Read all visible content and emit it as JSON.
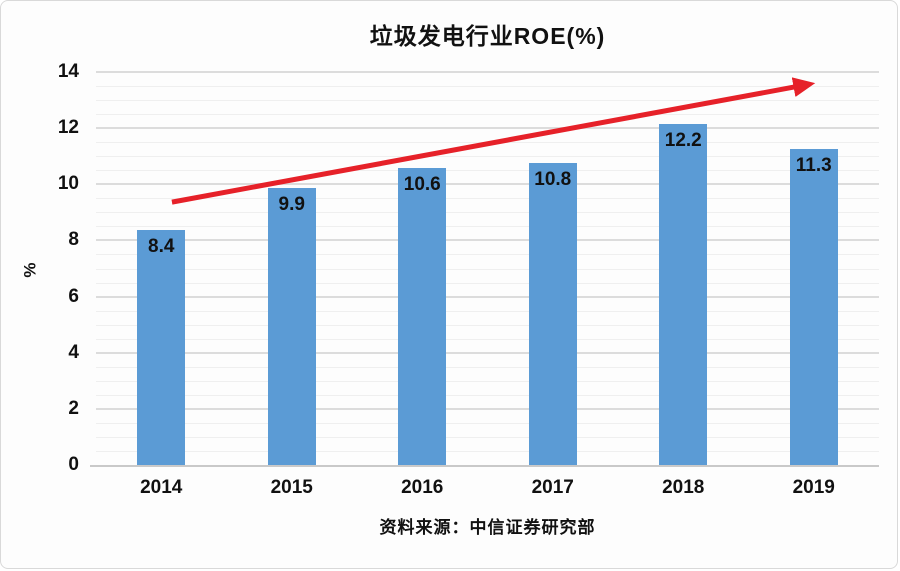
{
  "card": {
    "background": "#FDFDFD",
    "border_color": "#D9D9D9"
  },
  "chart_data": {
    "type": "bar",
    "title": "垃圾发电行业ROE(%)",
    "categories": [
      "2014",
      "2015",
      "2016",
      "2017",
      "2018",
      "2019"
    ],
    "values": [
      8.4,
      9.9,
      10.6,
      10.8,
      12.2,
      11.3
    ],
    "xlabel": "",
    "ylabel": "%",
    "ylim": [
      0,
      14
    ],
    "ytick_step": 2,
    "yminor_step": 0.5,
    "grid": true,
    "legend": false,
    "data_labels_shown": true,
    "bar_color": "#5B9BD5",
    "label_color": "#111111",
    "annotation": {
      "type": "trend-arrow",
      "color": "#E62129",
      "from": {
        "x_frac": 0.097,
        "y_value": 9.4
      },
      "to": {
        "x_frac": 0.911,
        "y_value": 13.6
      }
    }
  },
  "source_note": "资料来源：中信证券研究部"
}
